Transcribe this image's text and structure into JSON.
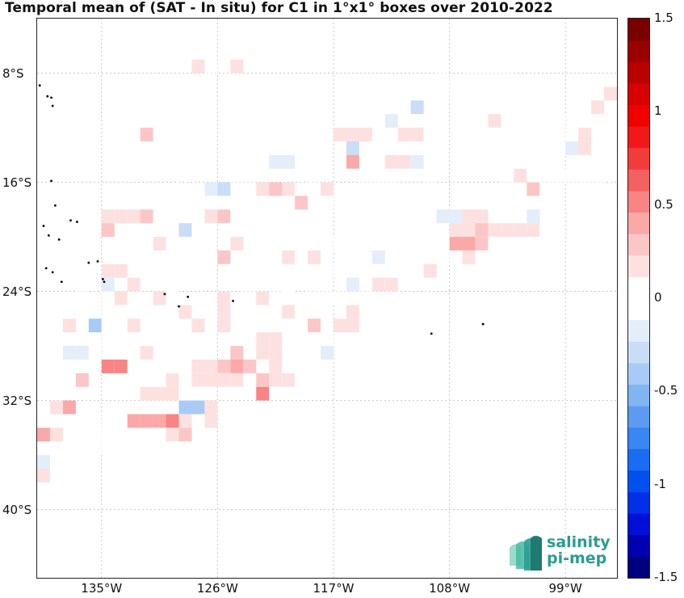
{
  "title": "Temporal mean of (SAT - In situ) for C1 in 1°x1° boxes over 2010-2022",
  "map": {
    "lat_range": [
      -45,
      -4
    ],
    "lon_range": [
      -140,
      -95
    ],
    "lat_ticks": [
      {
        "value": -8,
        "label": "8°S"
      },
      {
        "value": -16,
        "label": "16°S"
      },
      {
        "value": -24,
        "label": "24°S"
      },
      {
        "value": -32,
        "label": "32°S"
      },
      {
        "value": -40,
        "label": "40°S"
      }
    ],
    "lon_ticks": [
      {
        "value": -135,
        "label": "135°W"
      },
      {
        "value": -126,
        "label": "126°W"
      },
      {
        "value": -117,
        "label": "117°W"
      },
      {
        "value": -108,
        "label": "108°W"
      },
      {
        "value": -99,
        "label": "99°W"
      }
    ],
    "cells": [
      [
        -120,
        -5,
        -0.08
      ],
      [
        -104,
        -6,
        -0.08
      ],
      [
        -103,
        -6,
        -0.08
      ],
      [
        -102,
        -5,
        0.1
      ],
      [
        -128,
        -7,
        0.15
      ],
      [
        -127,
        -7,
        -0.08
      ],
      [
        -125,
        -7,
        0.15
      ],
      [
        -106,
        -7,
        0.1
      ],
      [
        -109,
        -8,
        -0.08
      ],
      [
        -107,
        -8,
        -0.08
      ],
      [
        -105,
        -8,
        -0.08
      ],
      [
        -104,
        -8,
        -0.08
      ],
      [
        -108,
        -9,
        -0.08
      ],
      [
        -110,
        -9,
        -0.08
      ],
      [
        -111,
        -9,
        -0.08
      ],
      [
        -96,
        -9,
        0.2
      ],
      [
        -97,
        -10,
        0.2
      ],
      [
        -124,
        -10,
        -0.08
      ],
      [
        -114,
        -10,
        -0.08
      ],
      [
        -111,
        -10,
        -0.3
      ],
      [
        -115,
        -11,
        -0.08
      ],
      [
        -113,
        -11,
        -0.2
      ],
      [
        -105,
        -11,
        0.15
      ],
      [
        -100,
        -11,
        -0.08
      ],
      [
        -97,
        -11,
        -0.08
      ],
      [
        -132,
        -12,
        0.3
      ],
      [
        -117,
        -12,
        0.15
      ],
      [
        -116,
        -12,
        0.15
      ],
      [
        -115,
        -12,
        0.15
      ],
      [
        -114,
        -12,
        -0.08
      ],
      [
        -112,
        -12,
        0.15
      ],
      [
        -111,
        -12,
        0.15
      ],
      [
        -99,
        -12,
        -0.08
      ],
      [
        -101,
        -12,
        -0.08
      ],
      [
        -102,
        -12,
        -0.08
      ],
      [
        -103,
        -12,
        -0.08
      ],
      [
        -98,
        -12,
        0.2
      ],
      [
        -120,
        -13,
        -0.08
      ],
      [
        -116,
        -13,
        -0.3
      ],
      [
        -115,
        -13,
        -0.08
      ],
      [
        -105,
        -13,
        -0.08
      ],
      [
        -103,
        -13,
        -0.08
      ],
      [
        -100,
        -13,
        -0.08
      ],
      [
        -99,
        -13,
        -0.15
      ],
      [
        -98,
        -13,
        0.2
      ],
      [
        -123,
        -14,
        -0.08
      ],
      [
        -122,
        -14,
        -0.15
      ],
      [
        -121,
        -14,
        -0.15
      ],
      [
        -116,
        -14,
        0.45
      ],
      [
        -115,
        -14,
        -0.08
      ],
      [
        -113,
        -14,
        0.15
      ],
      [
        -112,
        -14,
        0.15
      ],
      [
        -111,
        -14,
        -0.15
      ],
      [
        -103,
        -14,
        -0.08
      ],
      [
        -125,
        -15,
        -0.08
      ],
      [
        -114,
        -15,
        -0.08
      ],
      [
        -115,
        -15,
        -0.08
      ],
      [
        -113,
        -15,
        -0.08
      ],
      [
        -104,
        -15,
        -0.08
      ],
      [
        -103,
        -15,
        0.2
      ],
      [
        -102,
        -15,
        -0.08
      ],
      [
        -100,
        -15,
        -0.08
      ],
      [
        -99,
        -15,
        -0.08
      ],
      [
        -98,
        -15,
        -0.08
      ],
      [
        -97,
        -15,
        -0.08
      ],
      [
        -127,
        -16,
        -0.2
      ],
      [
        -126,
        -16,
        -0.3
      ],
      [
        -124,
        -16,
        -0.08
      ],
      [
        -123,
        -16,
        0.15
      ],
      [
        -122,
        -16,
        0.3
      ],
      [
        -121,
        -16,
        0.15
      ],
      [
        -119,
        -16,
        -0.08
      ],
      [
        -118,
        -16,
        0.15
      ],
      [
        -110,
        -16,
        -0.08
      ],
      [
        -102,
        -16,
        0.3
      ],
      [
        -101,
        -16,
        -0.08
      ],
      [
        -101,
        -16,
        -0.08
      ],
      [
        -127,
        -17,
        -0.08
      ],
      [
        -126,
        -17,
        -0.08
      ],
      [
        -125,
        -17,
        -0.08
      ],
      [
        -124,
        -17,
        -0.08
      ],
      [
        -120,
        -17,
        0.3
      ],
      [
        -118,
        -17,
        -0.08
      ],
      [
        -135,
        -18,
        0.2
      ],
      [
        -134,
        -18,
        0.2
      ],
      [
        -133,
        -18,
        0.15
      ],
      [
        -132,
        -18,
        0.3
      ],
      [
        -127,
        -18,
        0.2
      ],
      [
        -126,
        -18,
        0.3
      ],
      [
        -109,
        -18,
        -0.15
      ],
      [
        -108,
        -18,
        -0.15
      ],
      [
        -107,
        -18,
        0.15
      ],
      [
        -106,
        -18,
        0.2
      ],
      [
        -104,
        -18,
        -0.08
      ],
      [
        -102,
        -18,
        -0.2
      ],
      [
        -135,
        -19,
        0.3
      ],
      [
        -130,
        -19,
        -0.08
      ],
      [
        -129,
        -19,
        -0.3
      ],
      [
        -115,
        -19,
        -0.08
      ],
      [
        -112,
        -19,
        -0.08
      ],
      [
        -110,
        -19,
        -0.08
      ],
      [
        -108,
        -19,
        0.2
      ],
      [
        -107,
        -19,
        0.15
      ],
      [
        -106,
        -19,
        0.3
      ],
      [
        -105,
        -19,
        0.2
      ],
      [
        -104,
        -19,
        0.2
      ],
      [
        -103,
        -19,
        0.2
      ],
      [
        -102,
        -19,
        0.2
      ],
      [
        -131,
        -20,
        0.15
      ],
      [
        -130,
        -20,
        -0.08
      ],
      [
        -125,
        -20,
        0.15
      ],
      [
        -123,
        -20,
        -0.08
      ],
      [
        -121,
        -20,
        -0.08
      ],
      [
        -117,
        -20,
        -0.08
      ],
      [
        -113,
        -20,
        -0.08
      ],
      [
        -110,
        -20,
        -0.08
      ],
      [
        -109,
        -20,
        -0.08
      ],
      [
        -108,
        -20,
        0.45
      ],
      [
        -107,
        -20,
        0.45
      ],
      [
        -106,
        -20,
        0.3
      ],
      [
        -133,
        -21,
        -0.08
      ],
      [
        -132,
        -21,
        -0.08
      ],
      [
        -128,
        -21,
        -0.08
      ],
      [
        -127,
        -21,
        -0.08
      ],
      [
        -126,
        -21,
        0.3
      ],
      [
        -121,
        -21,
        0.15
      ],
      [
        -119,
        -21,
        0.15
      ],
      [
        -115,
        -21,
        -0.08
      ],
      [
        -114,
        -21,
        -0.15
      ],
      [
        -112,
        -21,
        -0.08
      ],
      [
        -110,
        -21,
        -0.08
      ],
      [
        -109,
        -21,
        -0.08
      ],
      [
        -107,
        -21,
        0.2
      ],
      [
        -135,
        -22,
        0.2
      ],
      [
        -134,
        -22,
        0.2
      ],
      [
        -130,
        -22,
        -0.08
      ],
      [
        -124,
        -22,
        -0.08
      ],
      [
        -123,
        -22,
        -0.08
      ],
      [
        -122,
        -22,
        -0.08
      ],
      [
        -117,
        -22,
        -0.08
      ],
      [
        -116,
        -22,
        -0.08
      ],
      [
        -115,
        -22,
        -0.08
      ],
      [
        -114,
        -22,
        -0.08
      ],
      [
        -113,
        -22,
        -0.08
      ],
      [
        -112,
        -22,
        -0.08
      ],
      [
        -111,
        -22,
        -0.08
      ],
      [
        -110,
        -22,
        0.15
      ],
      [
        -137,
        -23,
        -0.08
      ],
      [
        -135,
        -23,
        -0.2
      ],
      [
        -133,
        -23,
        0.2
      ],
      [
        -130,
        -23,
        -0.08
      ],
      [
        -124,
        -23,
        -0.08
      ],
      [
        -121,
        -23,
        -0.08
      ],
      [
        -116,
        -23,
        -0.2
      ],
      [
        -115,
        -23,
        -0.08
      ],
      [
        -114,
        -23,
        0.15
      ],
      [
        -113,
        -23,
        0.15
      ],
      [
        -135,
        -24,
        -0.08
      ],
      [
        -134,
        -24,
        0.2
      ],
      [
        -131,
        -24,
        0.15
      ],
      [
        -130,
        -24,
        -0.08
      ],
      [
        -126,
        -24,
        0.15
      ],
      [
        -123,
        -24,
        0.15
      ],
      [
        -122,
        -24,
        -0.08
      ],
      [
        -121,
        -24,
        -0.08
      ],
      [
        -119,
        -24,
        -0.08
      ],
      [
        -118,
        -24,
        -0.08
      ],
      [
        -117,
        -24,
        -0.08
      ],
      [
        -139,
        -25,
        -0.08
      ],
      [
        -137,
        -25,
        -0.08
      ],
      [
        -135,
        -25,
        -0.08
      ],
      [
        -133,
        -25,
        -0.08
      ],
      [
        -129,
        -25,
        0.2
      ],
      [
        -126,
        -25,
        0.15
      ],
      [
        -124,
        -25,
        -0.08
      ],
      [
        -122,
        -25,
        -0.08
      ],
      [
        -121,
        -25,
        0.15
      ],
      [
        -120,
        -25,
        -0.08
      ],
      [
        -119,
        -25,
        -0.08
      ],
      [
        -116,
        -25,
        0.15
      ],
      [
        -138,
        -26,
        0.2
      ],
      [
        -136,
        -26,
        -0.4
      ],
      [
        -135,
        -26,
        -0.08
      ],
      [
        -133,
        -26,
        0.15
      ],
      [
        -128,
        -26,
        0.2
      ],
      [
        -126,
        -26,
        0.15
      ],
      [
        -122,
        -26,
        -0.08
      ],
      [
        -121,
        -26,
        -0.08
      ],
      [
        -119,
        -26,
        0.3
      ],
      [
        -117,
        -26,
        0.2
      ],
      [
        -116,
        -26,
        0.2
      ],
      [
        -139,
        -27,
        -0.08
      ],
      [
        -137,
        -27,
        -0.08
      ],
      [
        -135,
        -27,
        -0.08
      ],
      [
        -133,
        -27,
        -0.08
      ],
      [
        -130,
        -27,
        -0.08
      ],
      [
        -125,
        -27,
        -0.08
      ],
      [
        -123,
        -27,
        0.15
      ],
      [
        -122,
        -27,
        0.15
      ],
      [
        -119,
        -27,
        -0.08
      ],
      [
        -118,
        -27,
        -0.08
      ],
      [
        -138,
        -28,
        -0.2
      ],
      [
        -137,
        -28,
        -0.2
      ],
      [
        -136,
        -28,
        -0.08
      ],
      [
        -132,
        -28,
        0.15
      ],
      [
        -129,
        -28,
        -0.08
      ],
      [
        -125,
        -28,
        0.3
      ],
      [
        -123,
        -28,
        0.2
      ],
      [
        -122,
        -28,
        0.2
      ],
      [
        -120,
        -28,
        -0.08
      ],
      [
        -118,
        -28,
        -0.15
      ],
      [
        -138,
        -29,
        -0.08
      ],
      [
        -135,
        -29,
        0.55
      ],
      [
        -134,
        -29,
        0.55
      ],
      [
        -131,
        -29,
        -0.08
      ],
      [
        -128,
        -29,
        0.2
      ],
      [
        -127,
        -29,
        0.2
      ],
      [
        -126,
        -29,
        0.3
      ],
      [
        -125,
        -29,
        0.45
      ],
      [
        -124,
        -29,
        0.3
      ],
      [
        -122,
        -29,
        0.2
      ],
      [
        -121,
        -29,
        -0.08
      ],
      [
        -120,
        -29,
        -0.08
      ],
      [
        -137,
        -30,
        0.3
      ],
      [
        -130,
        -30,
        0.2
      ],
      [
        -128,
        -30,
        0.2
      ],
      [
        -127,
        -30,
        0.2
      ],
      [
        -126,
        -30,
        0.2
      ],
      [
        -125,
        -30,
        0.2
      ],
      [
        -123,
        -30,
        0.3
      ],
      [
        -122,
        -30,
        0.2
      ],
      [
        -121,
        -30,
        0.2
      ],
      [
        -132,
        -31,
        0.15
      ],
      [
        -131,
        -31,
        0.2
      ],
      [
        -130,
        -31,
        0.2
      ],
      [
        -129,
        -31,
        -0.08
      ],
      [
        -128,
        -31,
        -0.08
      ],
      [
        -123,
        -31,
        0.55
      ],
      [
        -139,
        -32,
        0.15
      ],
      [
        -138,
        -32,
        0.4
      ],
      [
        -129,
        -32,
        -0.45
      ],
      [
        -128,
        -32,
        -0.45
      ],
      [
        -127,
        -32,
        0.2
      ],
      [
        -138,
        -33,
        -0.08
      ],
      [
        -135,
        -33,
        -0.08
      ],
      [
        -133,
        -33,
        0.4
      ],
      [
        -132,
        -33,
        0.4
      ],
      [
        -131,
        -33,
        0.4
      ],
      [
        -130,
        -33,
        0.55
      ],
      [
        -129,
        -33,
        0.2
      ],
      [
        -127,
        -33,
        0.2
      ],
      [
        -140,
        -34,
        0.45
      ],
      [
        -139,
        -34,
        0.2
      ],
      [
        -136,
        -34,
        -0.08
      ],
      [
        -135,
        -34,
        -0.08
      ],
      [
        -130,
        -34,
        0.2
      ],
      [
        -129,
        -34,
        0.3
      ],
      [
        -137,
        -35,
        -0.08
      ],
      [
        -136,
        -35,
        -0.08
      ],
      [
        -135,
        -35,
        -0.08
      ],
      [
        -140,
        -36,
        -0.2
      ],
      [
        -139,
        -36,
        -0.08
      ],
      [
        -140,
        -37,
        0.15
      ]
    ],
    "islands": [
      [
        -139.8,
        -8.9
      ],
      [
        -139.2,
        -9.7
      ],
      [
        -138.9,
        -9.8
      ],
      [
        -138.8,
        -10.4
      ],
      [
        -138.9,
        -15.9
      ],
      [
        -138.6,
        -17.7
      ],
      [
        -137.4,
        -18.8
      ],
      [
        -136.9,
        -18.9
      ],
      [
        -139.5,
        -19.2
      ],
      [
        -139.1,
        -19.9
      ],
      [
        -138.3,
        -20.2
      ],
      [
        -136.0,
        -21.9
      ],
      [
        -135.3,
        -21.8
      ],
      [
        -139.3,
        -22.3
      ],
      [
        -138.8,
        -22.6
      ],
      [
        -138.1,
        -23.3
      ],
      [
        -134.9,
        -23.1
      ],
      [
        -134.8,
        -23.3
      ],
      [
        -130.1,
        -24.2
      ],
      [
        -128.3,
        -24.4
      ],
      [
        -129.0,
        -25.1
      ],
      [
        -124.8,
        -24.7
      ],
      [
        -109.4,
        -27.1
      ],
      [
        -105.4,
        -26.4
      ]
    ]
  },
  "colorbar": {
    "range": [
      -1.5,
      1.5
    ],
    "ticks": [
      {
        "value": 1.5,
        "label": "1.5"
      },
      {
        "value": 1,
        "label": "1"
      },
      {
        "value": 0.5,
        "label": "0.5"
      },
      {
        "value": 0,
        "label": "0"
      },
      {
        "value": -0.5,
        "label": "-0.5"
      },
      {
        "value": -1,
        "label": "-1"
      },
      {
        "value": -1.5,
        "label": "-1.5"
      }
    ],
    "colors": [
      "#00007f",
      "#0000b0",
      "#0010d8",
      "#0030e8",
      "#0050f0",
      "#1a6cf2",
      "#3a86f2",
      "#5c9cf0",
      "#82b4f2",
      "#a8cbf5",
      "#c9ddf7",
      "#e3eefa",
      "#ffffff",
      "#ffffff",
      "#fde1e1",
      "#fcc6c6",
      "#fba8a8",
      "#f88484",
      "#f56060",
      "#f23c3c",
      "#f01818",
      "#f20000",
      "#d80000",
      "#bb0000",
      "#9a0000",
      "#7a0000"
    ]
  },
  "logo": {
    "line1": "salinity",
    "line2": "pi-mep",
    "color": "#2a9d8f"
  }
}
